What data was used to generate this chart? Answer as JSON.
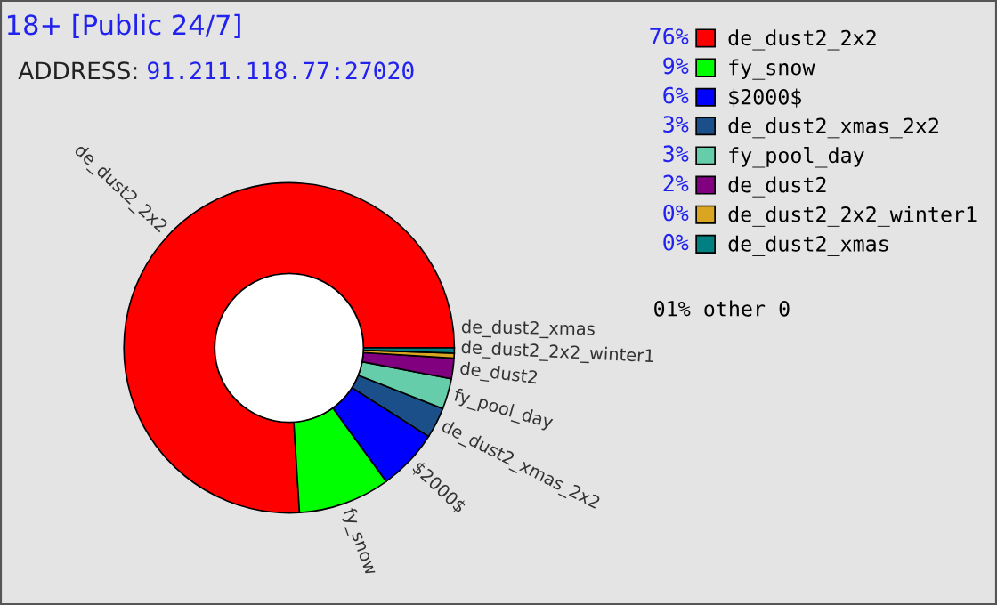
{
  "chart_data": {
    "type": "donut",
    "title": "18+ [Public 24/7]",
    "subtitle": "ADDRESS: 91.211.118.77:27020",
    "categories": [
      "de_dust2_2x2",
      "fy_snow",
      "$2000$",
      "de_dust2_xmas_2x2",
      "fy_pool_day",
      "de_dust2",
      "de_dust2_2x2_winter1",
      "de_dust2_xmas"
    ],
    "values": [
      76,
      9,
      6,
      3,
      3,
      2,
      0.5,
      0.5
    ],
    "value_labels": [
      "76%",
      "9%",
      "6%",
      "3%",
      "3%",
      "2%",
      "0%",
      "0%"
    ],
    "colors": [
      "#ff0000",
      "#00ff00",
      "#0000ff",
      "#1a4f8a",
      "#66cdaa",
      "#800080",
      "#daa520",
      "#008080"
    ],
    "legend": "right",
    "annotations": [
      "01% other 0"
    ]
  }
}
